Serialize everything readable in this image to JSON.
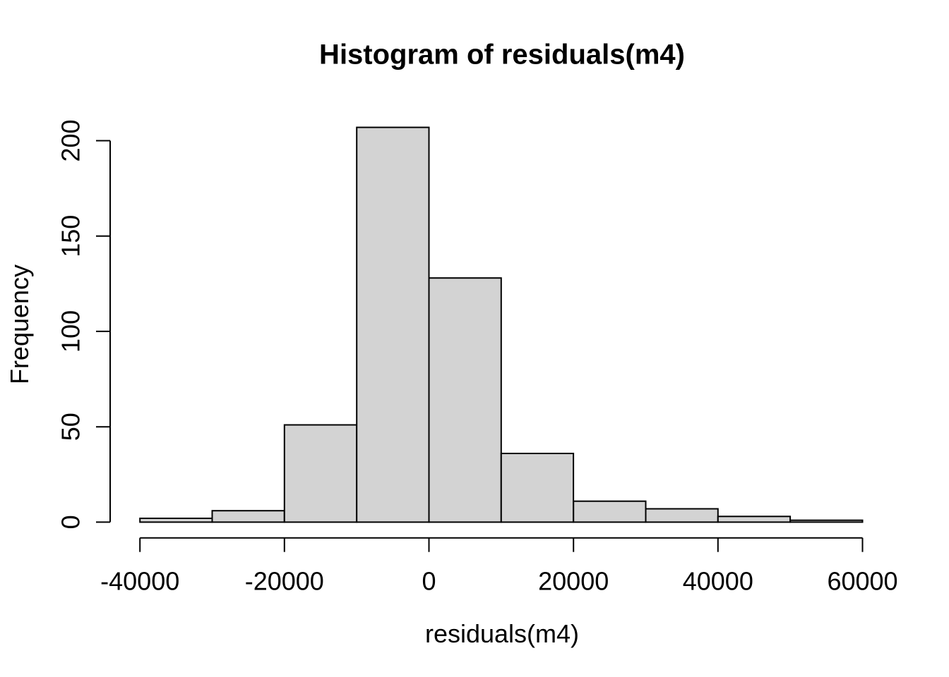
{
  "chart_data": {
    "type": "bar",
    "subtype": "histogram",
    "title": "Histogram of residuals(m4)",
    "xlabel": "residuals(m4)",
    "ylabel": "Frequency",
    "bin_width": 10000,
    "bin_edges": [
      -40000,
      -30000,
      -20000,
      -10000,
      0,
      10000,
      20000,
      30000,
      40000,
      50000,
      60000
    ],
    "counts": [
      2,
      6,
      51,
      207,
      128,
      36,
      11,
      7,
      3,
      1
    ],
    "x_ticks": [
      -40000,
      -20000,
      0,
      20000,
      40000,
      60000
    ],
    "x_tick_labels": [
      "-40000",
      "-20000",
      "0",
      "20000",
      "40000",
      "60000"
    ],
    "y_ticks": [
      0,
      50,
      100,
      150,
      200
    ],
    "y_tick_labels": [
      "0",
      "50",
      "100",
      "150",
      "200"
    ],
    "xlim": [
      -40000,
      60000
    ],
    "ylim": [
      0,
      207
    ],
    "grid": false,
    "legend": false,
    "bar_fill": "#d3d3d3",
    "bar_border": "#000000",
    "axis_color": "#000000",
    "text_color": "#000000",
    "background": "#ffffff"
  }
}
